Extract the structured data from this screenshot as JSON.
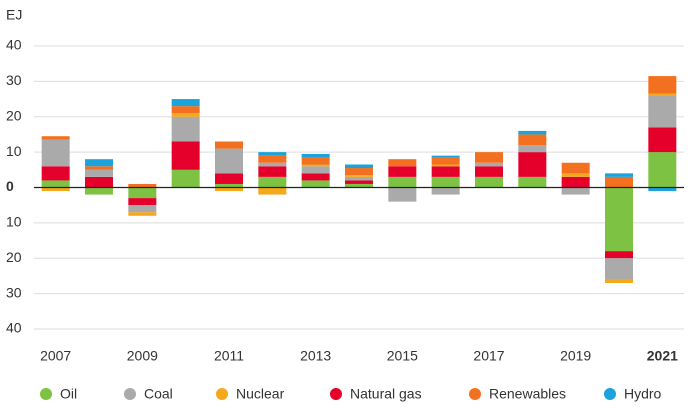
{
  "chart_data": {
    "type": "bar",
    "stacked": true,
    "y_label": "EJ",
    "categories": [
      "2007",
      null,
      "2009",
      null,
      "2011",
      null,
      "2013",
      null,
      "2015",
      null,
      "2017",
      null,
      "2019",
      null,
      "2021"
    ],
    "series": [
      {
        "name": "Oil",
        "color": "#7dc242",
        "values": [
          2,
          -2,
          -3,
          5,
          1,
          3,
          2,
          1,
          3,
          3,
          3,
          3,
          0,
          -18,
          10
        ]
      },
      {
        "name": "Coal",
        "color": "#aaaaaa",
        "values": [
          7.5,
          2,
          -2,
          7,
          7,
          1,
          2,
          1,
          -4,
          -2,
          1,
          2,
          -2,
          -6,
          9
        ]
      },
      {
        "name": "Nuclear",
        "color": "#f5a81c",
        "values": [
          -1,
          0,
          -1,
          1,
          -1,
          -2,
          0.5,
          0.5,
          0,
          0.5,
          0,
          0,
          1,
          -1,
          0.5
        ]
      },
      {
        "name": "Natural gas",
        "color": "#e4002b",
        "values": [
          4,
          3,
          -2,
          8,
          3,
          3,
          2,
          1,
          3,
          3,
          3,
          7,
          3,
          -2,
          7
        ]
      },
      {
        "name": "Renewables",
        "color": "#f37021",
        "values": [
          1,
          1,
          1,
          2,
          2,
          2,
          2,
          2,
          2,
          2,
          3,
          3,
          3,
          3,
          5
        ]
      },
      {
        "name": "Hydro",
        "color": "#1ca3dc",
        "values": [
          0,
          2,
          0,
          2,
          0,
          1,
          1,
          1,
          0,
          0.5,
          0,
          1,
          0,
          1,
          -1
        ]
      }
    ],
    "ylim": [
      -40,
      40
    ],
    "yticks": [
      {
        "value": -40,
        "label": "40"
      },
      {
        "value": -30,
        "label": "30"
      },
      {
        "value": -20,
        "label": "20"
      },
      {
        "value": -10,
        "label": "10"
      },
      0,
      10,
      20,
      30,
      40
    ],
    "grid": true
  }
}
